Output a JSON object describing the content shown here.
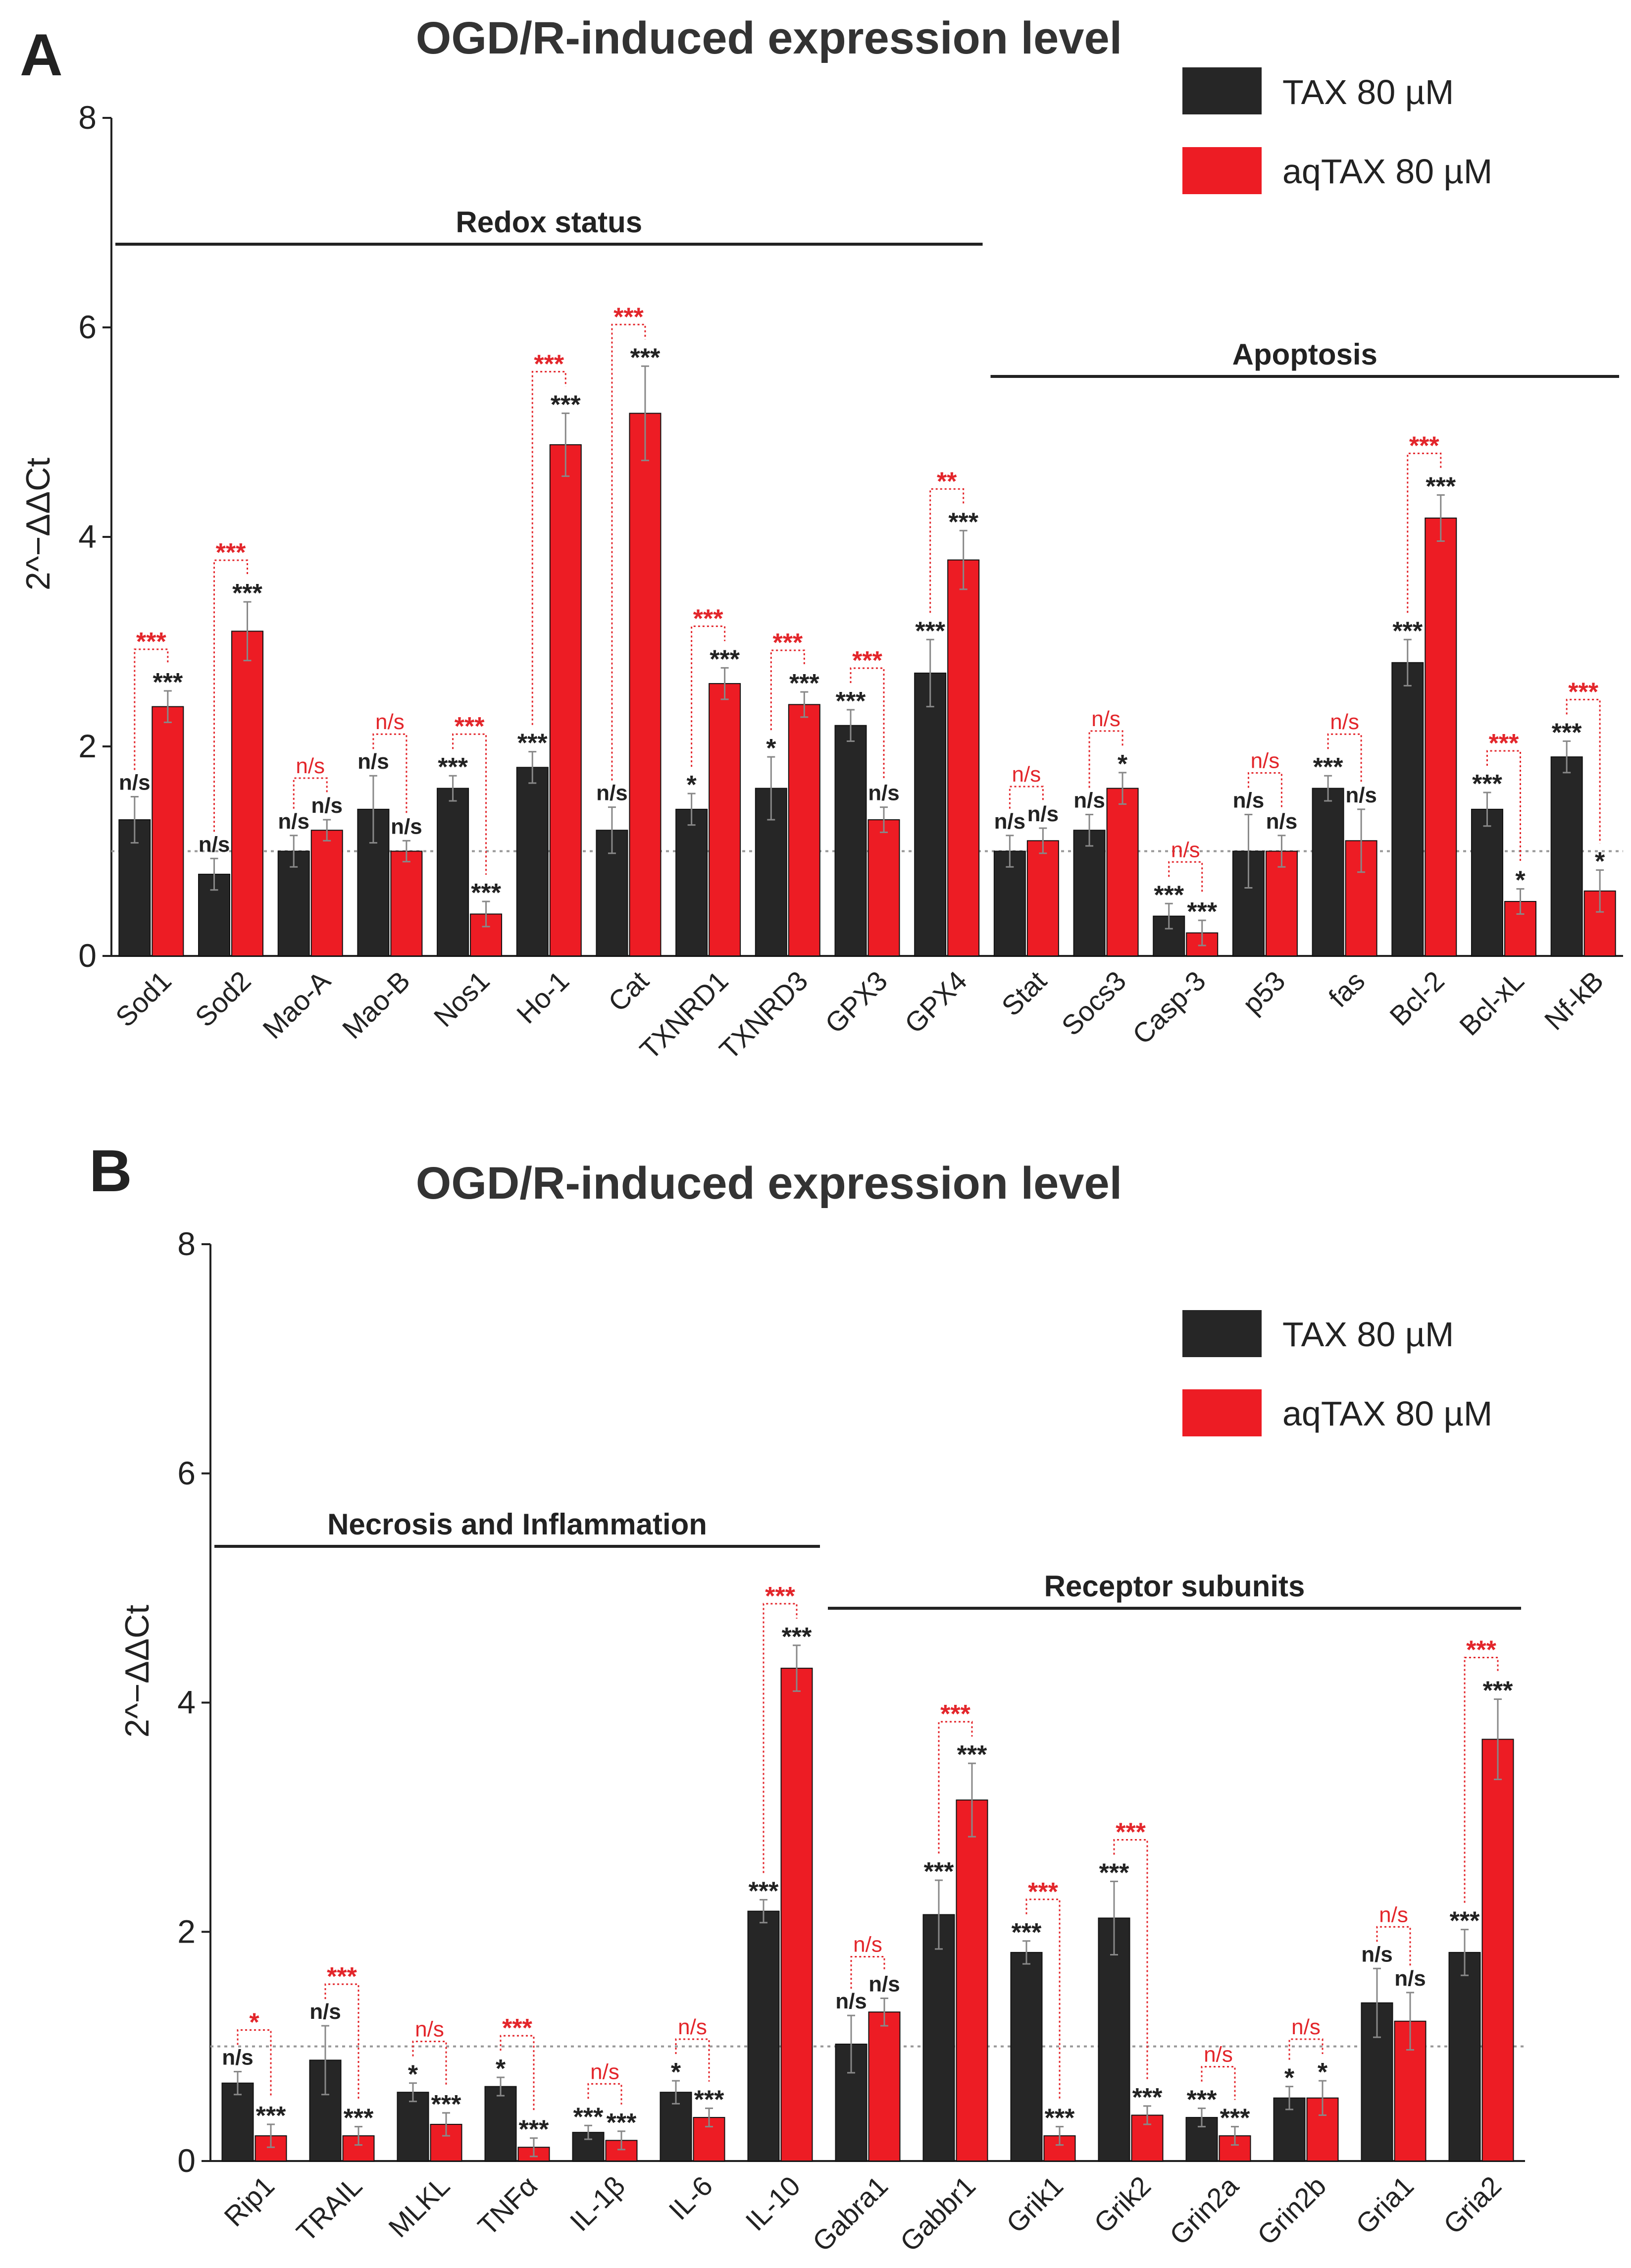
{
  "colors": {
    "tax": "#262626",
    "aqtax": "#ed1c24",
    "sig_black": "#222222",
    "sig_red": "#e3262b"
  },
  "chart_data": [
    {
      "panel": "A",
      "type": "bar",
      "title": "OGD/R-induced expression level",
      "xlabel": "",
      "ylabel": "2^−ΔΔCt",
      "ylim": [
        0,
        8
      ],
      "yticks": [
        "0",
        "2",
        "4",
        "6",
        "8"
      ],
      "reference_line": 1,
      "legend_position": "top-right",
      "categories": [
        "Sod1",
        "Sod2",
        "Mao-A",
        "Mao-B",
        "Nos1",
        "Ho-1",
        "Cat",
        "TXNRD1",
        "TXNRD3",
        "GPX3",
        "GPX4",
        "Stat",
        "Socs3",
        "Casp-3",
        "p53",
        "fas",
        "Bcl-2",
        "Bcl-xL",
        "Nf-kB"
      ],
      "series": [
        {
          "name": "TAX 80 µM",
          "values": [
            1.3,
            0.78,
            1.0,
            1.4,
            1.6,
            1.8,
            1.2,
            1.4,
            1.6,
            2.2,
            2.7,
            1.0,
            1.2,
            0.38,
            1.0,
            1.6,
            2.8,
            1.4,
            1.9
          ],
          "errors": [
            0.22,
            0.15,
            0.15,
            0.32,
            0.12,
            0.15,
            0.22,
            0.15,
            0.3,
            0.15,
            0.32,
            0.15,
            0.15,
            0.12,
            0.35,
            0.12,
            0.22,
            0.16,
            0.15
          ],
          "significance": [
            "n/s",
            "n/s",
            "n/s",
            "n/s",
            "***",
            "***",
            "n/s",
            "*",
            "*",
            "***",
            "***",
            "n/s",
            "n/s",
            "***",
            "n/s",
            "***",
            "***",
            "***",
            "***"
          ]
        },
        {
          "name": "aqTAX 80 µM",
          "values": [
            2.38,
            3.1,
            1.2,
            1.0,
            0.4,
            4.88,
            5.18,
            2.6,
            2.4,
            1.3,
            3.78,
            1.1,
            1.6,
            0.22,
            1.0,
            1.1,
            4.18,
            0.52,
            0.62
          ],
          "errors": [
            0.15,
            0.28,
            0.1,
            0.1,
            0.12,
            0.3,
            0.45,
            0.15,
            0.12,
            0.12,
            0.28,
            0.12,
            0.15,
            0.12,
            0.15,
            0.3,
            0.22,
            0.12,
            0.2
          ],
          "significance": [
            "***",
            "***",
            "n/s",
            "n/s",
            "***",
            "***",
            "***",
            "***",
            "***",
            "n/s",
            "***",
            "n/s",
            "*",
            "***",
            "n/s",
            "n/s",
            "***",
            "*",
            "*"
          ]
        }
      ],
      "comparison_significance": [
        "***",
        "***",
        "n/s",
        "n/s",
        "***",
        "***",
        "***",
        "***",
        "***",
        "***",
        "**",
        "n/s",
        "n/s",
        "n/s",
        "n/s",
        "n/s",
        "***",
        "***",
        "***"
      ],
      "group_labels": [
        {
          "label": "Redox status",
          "start": 0,
          "end": 10
        },
        {
          "label": "Apoptosis",
          "start": 11,
          "end": 18
        }
      ]
    },
    {
      "panel": "B",
      "type": "bar",
      "title": "OGD/R-induced expression level",
      "xlabel": "",
      "ylabel": "2^−ΔΔCt",
      "ylim": [
        0,
        8
      ],
      "yticks": [
        "0",
        "2",
        "4",
        "6",
        "8"
      ],
      "reference_line": 1,
      "legend_position": "top-right",
      "categories": [
        "Rip1",
        "TRAIL",
        "MLKL",
        "TNFα",
        "IL-1β",
        "IL-6",
        "IL-10",
        "Gabra1",
        "Gabbr1",
        "Grik1",
        "Grik2",
        "Grin2a",
        "Grin2b",
        "Gria1",
        "Gria2"
      ],
      "series": [
        {
          "name": "TAX 80 µM",
          "values": [
            0.68,
            0.88,
            0.6,
            0.65,
            0.25,
            0.6,
            2.18,
            1.02,
            2.15,
            1.82,
            2.12,
            0.38,
            0.55,
            1.38,
            1.82
          ],
          "errors": [
            0.1,
            0.3,
            0.08,
            0.08,
            0.06,
            0.1,
            0.1,
            0.25,
            0.3,
            0.1,
            0.32,
            0.08,
            0.1,
            0.3,
            0.2
          ],
          "significance": [
            "n/s",
            "n/s",
            "*",
            "*",
            "***",
            "*",
            "***",
            "n/s",
            "***",
            "***",
            "***",
            "***",
            "*",
            "n/s",
            "***"
          ]
        },
        {
          "name": "aqTAX 80 µM",
          "values": [
            0.22,
            0.22,
            0.32,
            0.12,
            0.18,
            0.38,
            4.3,
            1.3,
            3.15,
            0.22,
            0.4,
            0.22,
            0.55,
            1.22,
            3.68
          ],
          "errors": [
            0.1,
            0.08,
            0.1,
            0.08,
            0.08,
            0.08,
            0.2,
            0.12,
            0.32,
            0.08,
            0.08,
            0.08,
            0.15,
            0.25,
            0.35
          ],
          "significance": [
            "***",
            "***",
            "***",
            "***",
            "***",
            "***",
            "***",
            "n/s",
            "***",
            "***",
            "***",
            "***",
            "*",
            "n/s",
            "***"
          ]
        }
      ],
      "comparison_significance": [
        "*",
        "***",
        "n/s",
        "***",
        "n/s",
        "n/s",
        "***",
        "n/s",
        "***",
        "***",
        "***",
        "n/s",
        "n/s",
        "n/s",
        "***"
      ],
      "group_labels": [
        {
          "label": "Necrosis and Inflammation",
          "start": 0,
          "end": 6
        },
        {
          "label": "Receptor subunits",
          "start": 7,
          "end": 14
        }
      ]
    }
  ]
}
